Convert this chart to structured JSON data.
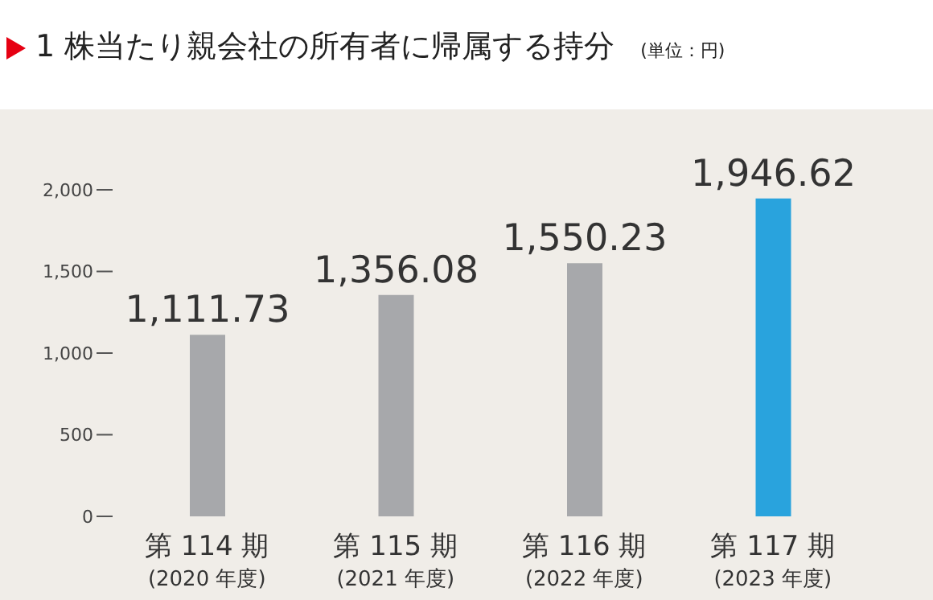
{
  "chart_data": {
    "type": "bar",
    "title": "1 株当たり親会社の所有者に帰属する持分",
    "subtitle": "(単位：円)",
    "categories": [
      "第 114 期\n(2020 年度)",
      "第 115 期\n(2021 年度)",
      "第 116 期\n(2022 年度)",
      "第 117 期\n(2023 年度)"
    ],
    "values": [
      1111.73,
      1356.08,
      1550.23,
      1946.62
    ],
    "colors": [
      "#a7a8ab",
      "#a7a8ab",
      "#a7a8ab",
      "#29a3dd"
    ],
    "value_labels": [
      "1,111.73",
      "1,356.08",
      "1,550.23",
      "1,946.62"
    ],
    "ylim": [
      0,
      2000
    ],
    "yticks": [
      0,
      500,
      {
        "value": 1000,
        "label": "1,000"
      },
      {
        "value": 1500,
        "label": "1,500"
      },
      {
        "value": 2000,
        "label": "2,000"
      }
    ],
    "grid": false
  }
}
